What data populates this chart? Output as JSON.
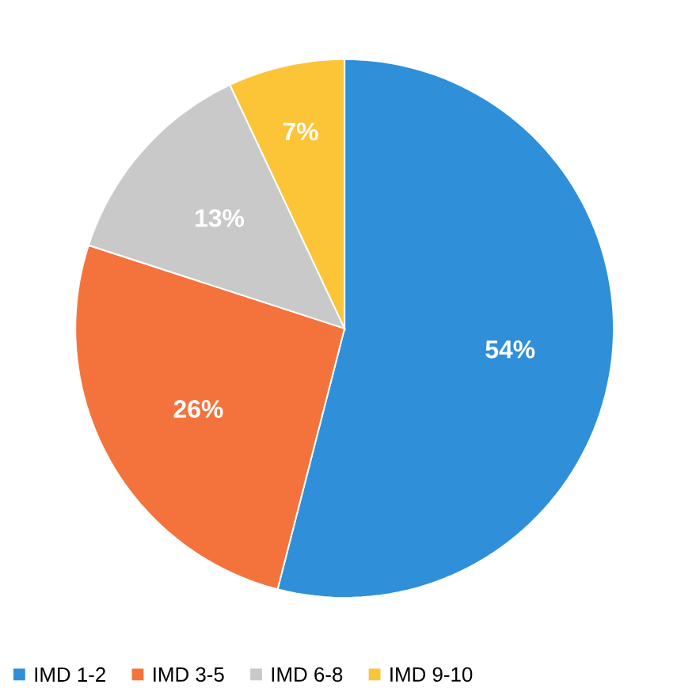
{
  "chart_data": {
    "type": "pie",
    "categories": [
      "IMD 1-2",
      "IMD 3-5",
      "IMD 6-8",
      "IMD 9-10"
    ],
    "values": [
      54,
      26,
      13,
      7
    ],
    "colors": [
      "#2f8fd9",
      "#f4733c",
      "#c9c9c9",
      "#fcc437"
    ],
    "value_labels": [
      "54%",
      "26%",
      "13%",
      "7%"
    ],
    "legend": "bottom"
  }
}
